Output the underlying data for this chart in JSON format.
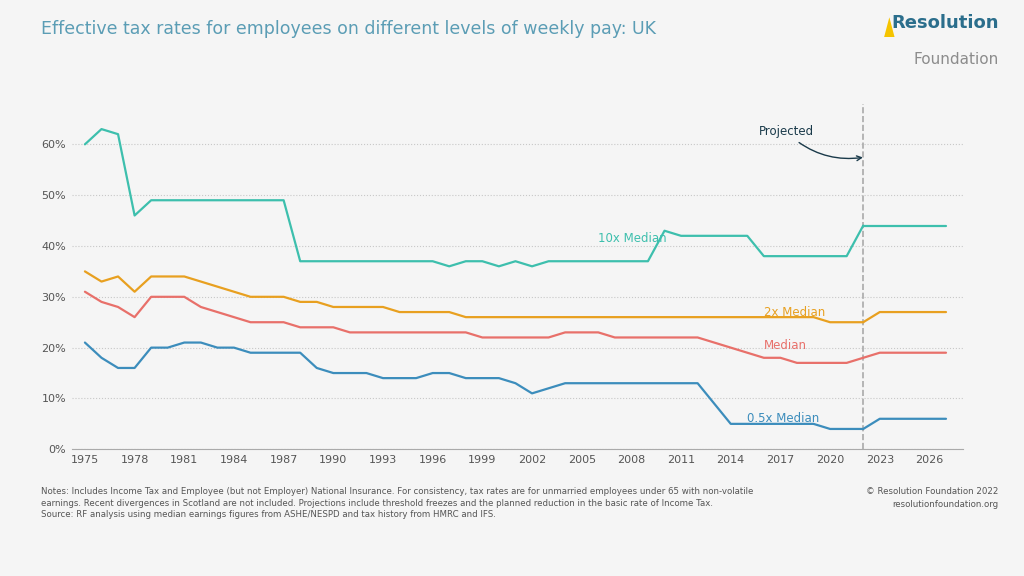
{
  "title": "Effective tax rates for employees on different levels of weekly pay: UK",
  "background_color": "#f5f5f5",
  "plot_bg_color": "#f5f5f5",
  "grid_color": "#c8c8c8",
  "projected_year": 2022,
  "ylim": [
    0,
    0.68
  ],
  "yticks": [
    0.0,
    0.1,
    0.2,
    0.3,
    0.4,
    0.5,
    0.6
  ],
  "ytick_labels": [
    "0%",
    "10%",
    "20%",
    "30%",
    "40%",
    "50%",
    "60%"
  ],
  "xticks": [
    1975,
    1978,
    1981,
    1984,
    1987,
    1990,
    1993,
    1996,
    1999,
    2002,
    2005,
    2008,
    2011,
    2014,
    2017,
    2020,
    2023,
    2026
  ],
  "note": "Notes: Includes Income Tax and Employee (but not Employer) National Insurance. For consistency, tax rates are for unmarried employees under 65 with non-volatile\nearnings. Recent divergences in Scotland are not included. Projections include threshold freezes and the planned reduction in the basic rate of Income Tax.\nSource: RF analysis using median earnings figures from ASHE/NESPD and tax history from HMRC and IFS.",
  "copyright": "© Resolution Foundation 2022\nresolutionfoundation.org",
  "title_color": "#5b9db5",
  "logo_resolution_color": "#2b6e8c",
  "logo_foundation_color": "#8c8c8c",
  "logo_triangle_color": "#f5c400",
  "series": {
    "10x_median": {
      "label": "10x Median",
      "color": "#3dbfad",
      "years": [
        1975,
        1976,
        1977,
        1978,
        1979,
        1980,
        1981,
        1982,
        1983,
        1984,
        1985,
        1986,
        1987,
        1988,
        1989,
        1990,
        1991,
        1992,
        1993,
        1994,
        1995,
        1996,
        1997,
        1998,
        1999,
        2000,
        2001,
        2002,
        2003,
        2004,
        2005,
        2006,
        2007,
        2008,
        2009,
        2010,
        2011,
        2012,
        2013,
        2014,
        2015,
        2016,
        2017,
        2018,
        2019,
        2020,
        2021,
        2022,
        2023,
        2024,
        2025,
        2026,
        2027
      ],
      "values": [
        0.6,
        0.63,
        0.62,
        0.46,
        0.49,
        0.49,
        0.49,
        0.49,
        0.49,
        0.49,
        0.49,
        0.49,
        0.49,
        0.37,
        0.37,
        0.37,
        0.37,
        0.37,
        0.37,
        0.37,
        0.37,
        0.37,
        0.36,
        0.37,
        0.37,
        0.36,
        0.37,
        0.36,
        0.37,
        0.37,
        0.37,
        0.37,
        0.37,
        0.37,
        0.37,
        0.43,
        0.42,
        0.42,
        0.42,
        0.42,
        0.42,
        0.38,
        0.38,
        0.38,
        0.38,
        0.38,
        0.38,
        0.44,
        0.44,
        0.44,
        0.44,
        0.44,
        0.44
      ]
    },
    "2x_median": {
      "label": "2x Median",
      "color": "#e8a020",
      "years": [
        1975,
        1976,
        1977,
        1978,
        1979,
        1980,
        1981,
        1982,
        1983,
        1984,
        1985,
        1986,
        1987,
        1988,
        1989,
        1990,
        1991,
        1992,
        1993,
        1994,
        1995,
        1996,
        1997,
        1998,
        1999,
        2000,
        2001,
        2002,
        2003,
        2004,
        2005,
        2006,
        2007,
        2008,
        2009,
        2010,
        2011,
        2012,
        2013,
        2014,
        2015,
        2016,
        2017,
        2018,
        2019,
        2020,
        2021,
        2022,
        2023,
        2024,
        2025,
        2026,
        2027
      ],
      "values": [
        0.35,
        0.33,
        0.34,
        0.31,
        0.34,
        0.34,
        0.34,
        0.33,
        0.32,
        0.31,
        0.3,
        0.3,
        0.3,
        0.29,
        0.29,
        0.28,
        0.28,
        0.28,
        0.28,
        0.27,
        0.27,
        0.27,
        0.27,
        0.26,
        0.26,
        0.26,
        0.26,
        0.26,
        0.26,
        0.26,
        0.26,
        0.26,
        0.26,
        0.26,
        0.26,
        0.26,
        0.26,
        0.26,
        0.26,
        0.26,
        0.26,
        0.26,
        0.26,
        0.26,
        0.26,
        0.25,
        0.25,
        0.25,
        0.27,
        0.27,
        0.27,
        0.27,
        0.27
      ]
    },
    "median": {
      "label": "Median",
      "color": "#e8706a",
      "years": [
        1975,
        1976,
        1977,
        1978,
        1979,
        1980,
        1981,
        1982,
        1983,
        1984,
        1985,
        1986,
        1987,
        1988,
        1989,
        1990,
        1991,
        1992,
        1993,
        1994,
        1995,
        1996,
        1997,
        1998,
        1999,
        2000,
        2001,
        2002,
        2003,
        2004,
        2005,
        2006,
        2007,
        2008,
        2009,
        2010,
        2011,
        2012,
        2013,
        2014,
        2015,
        2016,
        2017,
        2018,
        2019,
        2020,
        2021,
        2022,
        2023,
        2024,
        2025,
        2026,
        2027
      ],
      "values": [
        0.31,
        0.29,
        0.28,
        0.26,
        0.3,
        0.3,
        0.3,
        0.28,
        0.27,
        0.26,
        0.25,
        0.25,
        0.25,
        0.24,
        0.24,
        0.24,
        0.23,
        0.23,
        0.23,
        0.23,
        0.23,
        0.23,
        0.23,
        0.23,
        0.22,
        0.22,
        0.22,
        0.22,
        0.22,
        0.23,
        0.23,
        0.23,
        0.22,
        0.22,
        0.22,
        0.22,
        0.22,
        0.22,
        0.21,
        0.2,
        0.19,
        0.18,
        0.18,
        0.17,
        0.17,
        0.17,
        0.17,
        0.18,
        0.19,
        0.19,
        0.19,
        0.19,
        0.19
      ]
    },
    "half_median": {
      "label": "0.5x Median",
      "color": "#3c8dbc",
      "years": [
        1975,
        1976,
        1977,
        1978,
        1979,
        1980,
        1981,
        1982,
        1983,
        1984,
        1985,
        1986,
        1987,
        1988,
        1989,
        1990,
        1991,
        1992,
        1993,
        1994,
        1995,
        1996,
        1997,
        1998,
        1999,
        2000,
        2001,
        2002,
        2003,
        2004,
        2005,
        2006,
        2007,
        2008,
        2009,
        2010,
        2011,
        2012,
        2013,
        2014,
        2015,
        2016,
        2017,
        2018,
        2019,
        2020,
        2021,
        2022,
        2023,
        2024,
        2025,
        2026,
        2027
      ],
      "values": [
        0.21,
        0.18,
        0.16,
        0.16,
        0.2,
        0.2,
        0.21,
        0.21,
        0.2,
        0.2,
        0.19,
        0.19,
        0.19,
        0.19,
        0.16,
        0.15,
        0.15,
        0.15,
        0.14,
        0.14,
        0.14,
        0.15,
        0.15,
        0.14,
        0.14,
        0.14,
        0.13,
        0.11,
        0.12,
        0.13,
        0.13,
        0.13,
        0.13,
        0.13,
        0.13,
        0.13,
        0.13,
        0.13,
        0.09,
        0.05,
        0.05,
        0.05,
        0.05,
        0.05,
        0.05,
        0.04,
        0.04,
        0.04,
        0.06,
        0.06,
        0.06,
        0.06,
        0.06
      ]
    }
  }
}
